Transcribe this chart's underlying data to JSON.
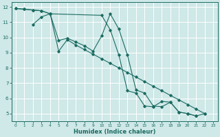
{
  "xlabel": "Humidex (Indice chaleur)",
  "bg_color": "#cfe8e8",
  "grid_color": "#ffffff",
  "line_color": "#1a6b60",
  "xlim": [
    -0.5,
    23.5
  ],
  "ylim": [
    4.5,
    12.3
  ],
  "xticks": [
    0,
    1,
    2,
    3,
    4,
    5,
    6,
    7,
    8,
    9,
    10,
    11,
    12,
    13,
    14,
    15,
    16,
    17,
    18,
    19,
    20,
    21,
    22,
    23
  ],
  "yticks": [
    5,
    6,
    7,
    8,
    9,
    10,
    11,
    12
  ],
  "line1_x": [
    0,
    1,
    2,
    3,
    4,
    10,
    11,
    12,
    13,
    14,
    15,
    16,
    17,
    18,
    19,
    20,
    21,
    22
  ],
  "line1_y": [
    11.9,
    11.85,
    11.8,
    11.75,
    11.55,
    11.45,
    10.5,
    8.85,
    6.5,
    6.35,
    5.5,
    5.45,
    5.8,
    5.75,
    5.1,
    5.0,
    4.85,
    5.0
  ],
  "line2_x": [
    2,
    3,
    4,
    5,
    6,
    7,
    8,
    9,
    10,
    11,
    12,
    13,
    14,
    15,
    16,
    17,
    18,
    19,
    20,
    21
  ],
  "line2_y": [
    10.85,
    11.35,
    11.55,
    9.8,
    9.95,
    9.7,
    9.45,
    9.1,
    10.1,
    11.55,
    10.55,
    8.85,
    6.55,
    6.35,
    5.5,
    5.45,
    5.75,
    5.1,
    5.0,
    4.85
  ],
  "line3_x": [
    0,
    1,
    2,
    3,
    4,
    5,
    6,
    7,
    8,
    9,
    10,
    11,
    12,
    13,
    14,
    15,
    16,
    17,
    18,
    19,
    20,
    21,
    22
  ],
  "line3_y": [
    11.9,
    11.85,
    11.8,
    11.75,
    11.55,
    9.1,
    9.85,
    9.5,
    9.2,
    8.9,
    8.6,
    8.3,
    8.0,
    7.7,
    7.4,
    7.1,
    6.8,
    6.5,
    6.2,
    5.9,
    5.6,
    5.3,
    5.0
  ]
}
